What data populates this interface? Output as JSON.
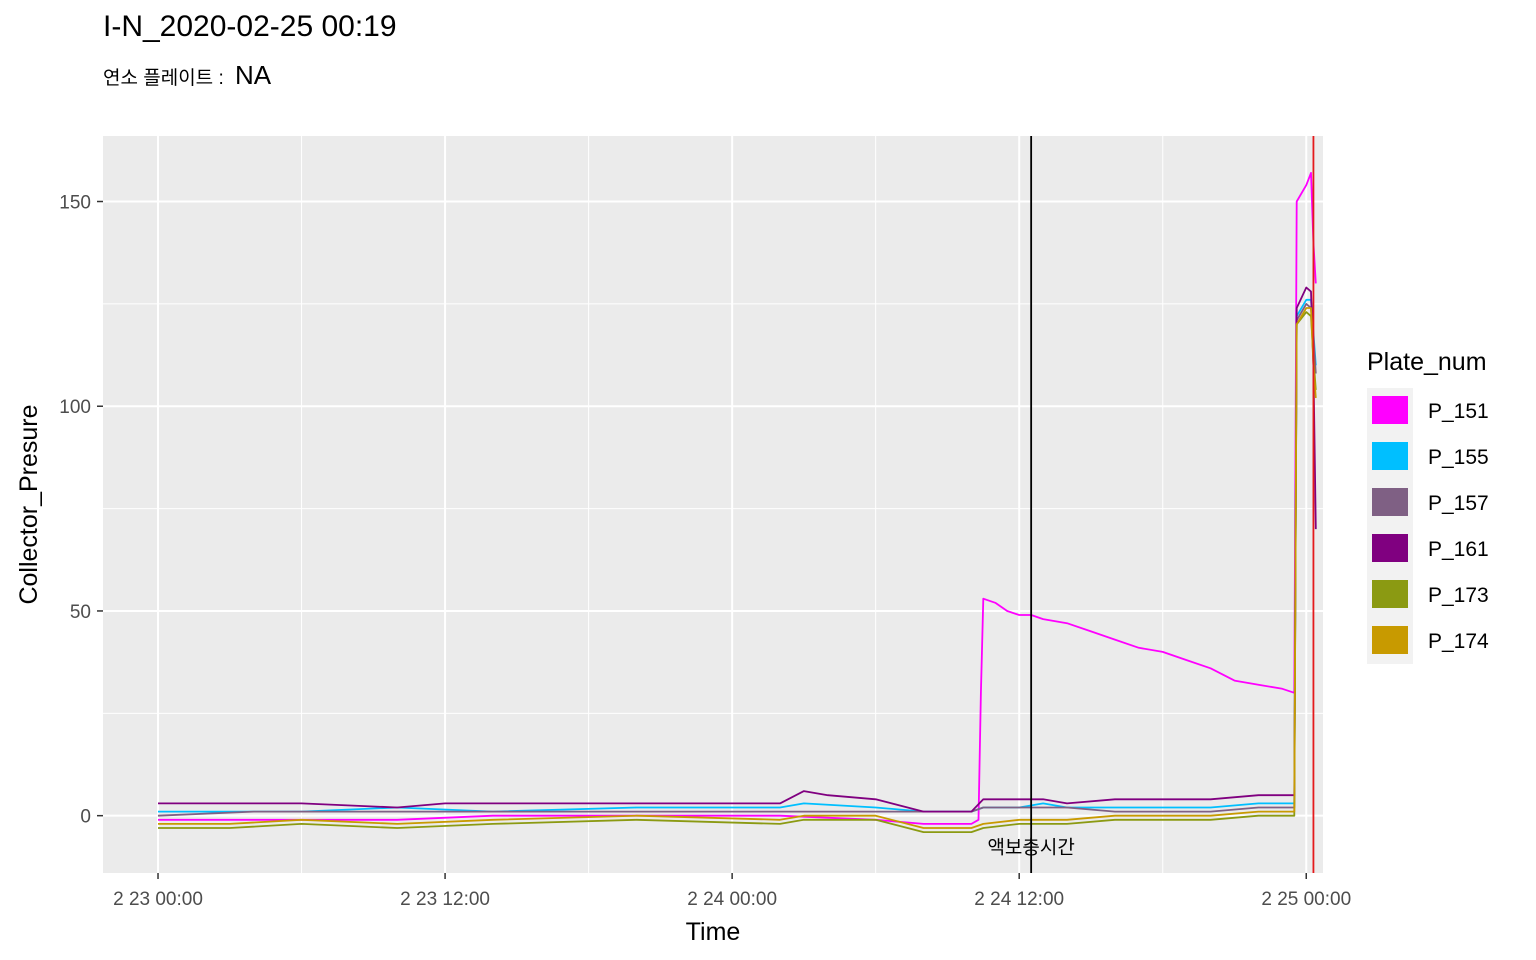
{
  "chart_data": {
    "type": "line",
    "title": "I-N_2020-02-25 00:19",
    "subtitle_label": "연소 플레이트 :",
    "subtitle_value": "NA",
    "xlabel": "Time",
    "ylabel": "Collector_Presure",
    "x_ticks": [
      "2 23 00:00",
      "2 23 12:00",
      "2 24 00:00",
      "2 24 12:00",
      "2 25 00:00"
    ],
    "x_tick_hours": [
      0,
      12,
      24,
      36,
      48
    ],
    "xlim_hours": [
      -2.3,
      48.7
    ],
    "y_ticks": [
      0,
      50,
      100,
      150
    ],
    "ylim": [
      -14,
      166
    ],
    "grid": true,
    "legend_title": "Plate_num",
    "legend_position": "right",
    "annotation": {
      "text": "액보충시간",
      "x_hour": 36.5,
      "y": -7
    },
    "vlines": [
      {
        "x_hour": 36.5,
        "color": "#000000"
      },
      {
        "x_hour": 48.3,
        "color": "#e41a1c"
      }
    ],
    "series": [
      {
        "name": "P_151",
        "color": "#FF00FF",
        "points": [
          [
            0,
            -1
          ],
          [
            4,
            -1
          ],
          [
            6,
            -1
          ],
          [
            10,
            -1
          ],
          [
            14,
            0
          ],
          [
            20,
            0
          ],
          [
            26,
            0
          ],
          [
            30,
            -1
          ],
          [
            32,
            -2
          ],
          [
            34,
            -2
          ],
          [
            34.3,
            -1
          ],
          [
            34.4,
            30
          ],
          [
            34.5,
            53
          ],
          [
            35,
            52
          ],
          [
            35.5,
            50
          ],
          [
            36,
            49
          ],
          [
            36.5,
            49
          ],
          [
            37,
            48
          ],
          [
            38,
            47
          ],
          [
            39,
            45
          ],
          [
            40,
            43
          ],
          [
            41,
            41
          ],
          [
            42,
            40
          ],
          [
            43,
            38
          ],
          [
            44,
            36
          ],
          [
            45,
            33
          ],
          [
            46,
            32
          ],
          [
            47,
            31
          ],
          [
            47.5,
            30
          ],
          [
            47.6,
            150
          ],
          [
            48,
            154
          ],
          [
            48.2,
            157
          ],
          [
            48.3,
            140
          ],
          [
            48.4,
            130
          ]
        ]
      },
      {
        "name": "P_155",
        "color": "#00BFFF",
        "points": [
          [
            0,
            1
          ],
          [
            3,
            1
          ],
          [
            6,
            1
          ],
          [
            10,
            2
          ],
          [
            14,
            1
          ],
          [
            20,
            2
          ],
          [
            26,
            2
          ],
          [
            27,
            3
          ],
          [
            30,
            2
          ],
          [
            32,
            1
          ],
          [
            34,
            1
          ],
          [
            34.5,
            2
          ],
          [
            36,
            2
          ],
          [
            37,
            3
          ],
          [
            38,
            2
          ],
          [
            40,
            2
          ],
          [
            44,
            2
          ],
          [
            46,
            3
          ],
          [
            47.5,
            3
          ],
          [
            47.6,
            122
          ],
          [
            48,
            126
          ],
          [
            48.2,
            126
          ],
          [
            48.3,
            118
          ],
          [
            48.4,
            110
          ]
        ]
      },
      {
        "name": "P_157",
        "color": "#7F6084",
        "points": [
          [
            0,
            0
          ],
          [
            4,
            1
          ],
          [
            6,
            1
          ],
          [
            10,
            1
          ],
          [
            14,
            1
          ],
          [
            20,
            1
          ],
          [
            26,
            1
          ],
          [
            30,
            1
          ],
          [
            32,
            1
          ],
          [
            34,
            1
          ],
          [
            34.5,
            2
          ],
          [
            36,
            2
          ],
          [
            38,
            2
          ],
          [
            40,
            1
          ],
          [
            44,
            1
          ],
          [
            46,
            2
          ],
          [
            47.5,
            2
          ],
          [
            47.6,
            121
          ],
          [
            48,
            125
          ],
          [
            48.2,
            124
          ],
          [
            48.3,
            117
          ],
          [
            48.4,
            108
          ]
        ]
      },
      {
        "name": "P_161",
        "color": "#800080",
        "points": [
          [
            0,
            3
          ],
          [
            3,
            3
          ],
          [
            6,
            3
          ],
          [
            10,
            2
          ],
          [
            12,
            3
          ],
          [
            14,
            3
          ],
          [
            20,
            3
          ],
          [
            26,
            3
          ],
          [
            27,
            6
          ],
          [
            28,
            5
          ],
          [
            30,
            4
          ],
          [
            32,
            1
          ],
          [
            34,
            1
          ],
          [
            34.5,
            4
          ],
          [
            36,
            4
          ],
          [
            37,
            4
          ],
          [
            38,
            3
          ],
          [
            40,
            4
          ],
          [
            44,
            4
          ],
          [
            46,
            5
          ],
          [
            47.5,
            5
          ],
          [
            47.6,
            124
          ],
          [
            48,
            129
          ],
          [
            48.2,
            128
          ],
          [
            48.3,
            110
          ],
          [
            48.4,
            70
          ]
        ]
      },
      {
        "name": "P_173",
        "color": "#8B9A12",
        "points": [
          [
            0,
            -3
          ],
          [
            3,
            -3
          ],
          [
            6,
            -2
          ],
          [
            10,
            -3
          ],
          [
            14,
            -2
          ],
          [
            20,
            -1
          ],
          [
            26,
            -2
          ],
          [
            27,
            -1
          ],
          [
            30,
            -1
          ],
          [
            32,
            -4
          ],
          [
            34,
            -4
          ],
          [
            34.5,
            -3
          ],
          [
            36,
            -2
          ],
          [
            38,
            -2
          ],
          [
            40,
            -1
          ],
          [
            44,
            -1
          ],
          [
            46,
            0
          ],
          [
            47.5,
            0
          ],
          [
            47.6,
            120
          ],
          [
            48,
            123
          ],
          [
            48.2,
            122
          ],
          [
            48.3,
            112
          ],
          [
            48.4,
            104
          ]
        ]
      },
      {
        "name": "P_174",
        "color": "#C89A00",
        "points": [
          [
            0,
            -2
          ],
          [
            3,
            -2
          ],
          [
            6,
            -1
          ],
          [
            10,
            -2
          ],
          [
            14,
            -1
          ],
          [
            20,
            0
          ],
          [
            26,
            -1
          ],
          [
            27,
            0
          ],
          [
            30,
            0
          ],
          [
            32,
            -3
          ],
          [
            34,
            -3
          ],
          [
            34.5,
            -2
          ],
          [
            36,
            -1
          ],
          [
            38,
            -1
          ],
          [
            40,
            0
          ],
          [
            44,
            0
          ],
          [
            46,
            1
          ],
          [
            47.5,
            1
          ],
          [
            47.6,
            120
          ],
          [
            48,
            124
          ],
          [
            48.2,
            124
          ],
          [
            48.3,
            110
          ],
          [
            48.4,
            102
          ]
        ]
      }
    ]
  }
}
